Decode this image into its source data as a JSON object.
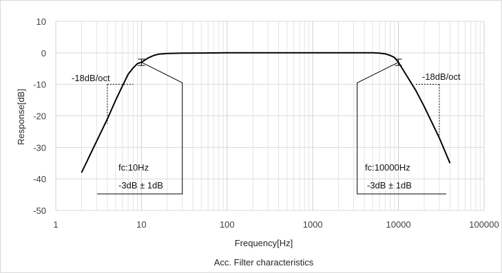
{
  "chart_data": {
    "type": "line",
    "title": "Acc. Filter characteristics",
    "xlabel": "Frequency[Hz]",
    "ylabel": "Response[dB]",
    "xscale": "log",
    "xlim": [
      1,
      100000
    ],
    "ylim": [
      -50,
      10
    ],
    "grid": true,
    "x_ticks": [
      "1",
      "10",
      "100",
      "1000",
      "10000",
      "100000"
    ],
    "y_ticks": [
      "10",
      "0",
      "-10",
      "-20",
      "-30",
      "-40",
      "-50"
    ],
    "series": [
      {
        "x": [
          2,
          3,
          4,
          5,
          6,
          7,
          8,
          9,
          10,
          12,
          14,
          16,
          20,
          30,
          50,
          100,
          200,
          500,
          1000,
          2000,
          4000,
          5000,
          6000,
          7000,
          8000,
          9000,
          10000,
          12000,
          16000,
          20000,
          30000,
          40000
        ],
        "y": [
          -38,
          -28,
          -21,
          -15,
          -10.5,
          -6.8,
          -4.8,
          -3.4,
          -3,
          -1.6,
          -0.8,
          -0.4,
          -0.2,
          -0.1,
          -0.05,
          0,
          0,
          0,
          0,
          0,
          0,
          0,
          -0.1,
          -0.3,
          -0.8,
          -1.5,
          -3,
          -6.5,
          -12,
          -17,
          -27,
          -35
        ]
      }
    ],
    "error_bars": [
      {
        "x": 10,
        "y": -3,
        "plus": 1,
        "minus": 1
      },
      {
        "x": 10000,
        "y": -3,
        "plus": 1,
        "minus": 1
      }
    ],
    "slope_annotations": [
      {
        "text": "-18dB/oct",
        "x_from": 4,
        "x_to": 8,
        "y_from": -22.5,
        "y_to": -10
      },
      {
        "text": "-18dB/oct",
        "x_from": 16000,
        "x_to": 30000,
        "y_from": -10,
        "y_to": -26.5
      }
    ],
    "callouts": [
      {
        "line1": "fc:10Hz",
        "line2": "-3dB ± 1dB",
        "target_x": 10,
        "target_y": -3,
        "bracket_x": 30
      },
      {
        "line1": "fc:10000Hz",
        "line2": "-3dB ± 1dB",
        "target_x": 10000,
        "target_y": -3,
        "bracket_x": 3300
      }
    ]
  }
}
